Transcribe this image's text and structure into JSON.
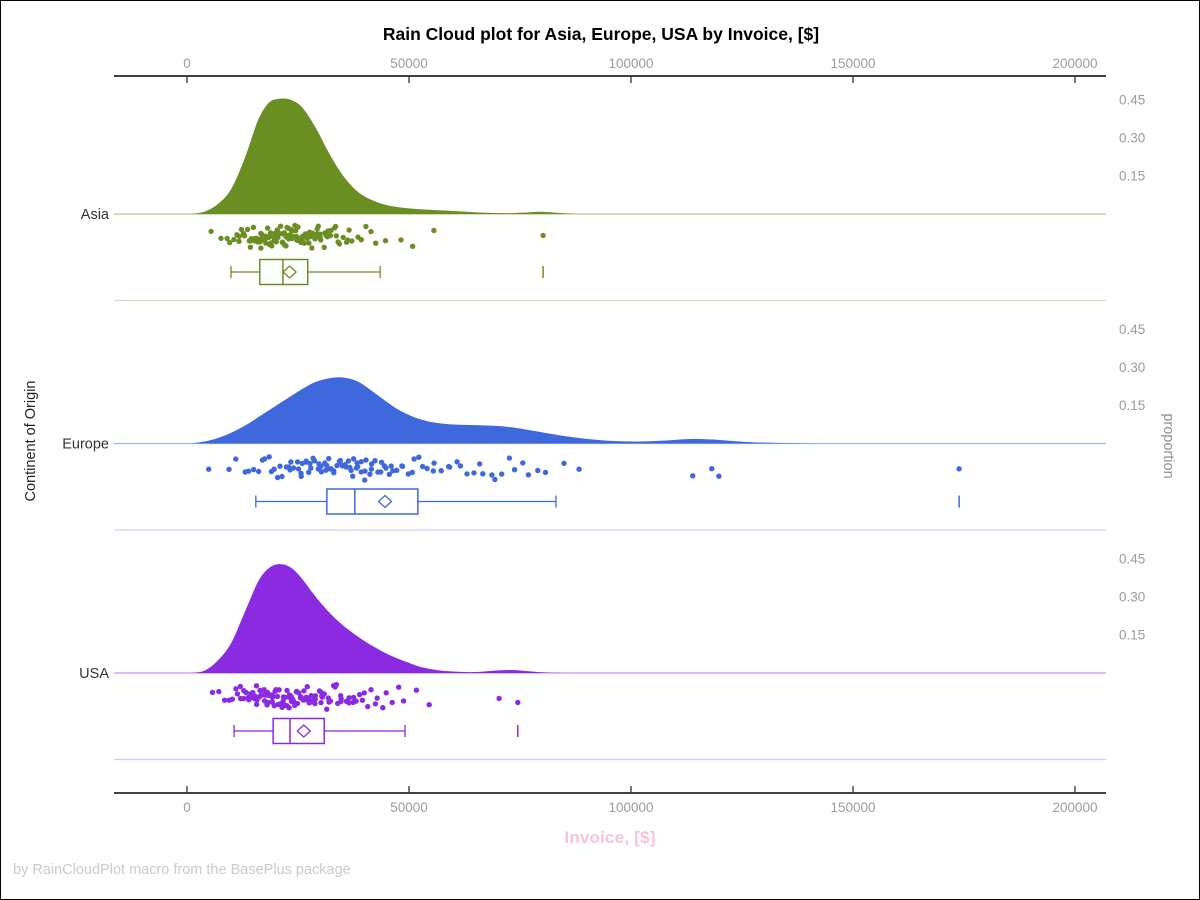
{
  "chart": {
    "title": "Rain Cloud plot for Asia, Europe, USA by Invoice, [$]",
    "xlabel": "Invoice, [$]",
    "ylabel_left": "Continent of Origin",
    "ylabel_right": "proportion",
    "footnote": "by RainCloudPlot macro from the BasePlus package",
    "x_tick_labels": [
      "0",
      "50000",
      "100000",
      "150000",
      "200000"
    ],
    "proportion_tick_labels": [
      "0.15",
      "0.30",
      "0.45"
    ]
  },
  "colors": {
    "axis_line": "#000000",
    "tick_mark": "#333333",
    "tick_label": "#9B9B9B",
    "category_label": "#333333",
    "title": "#000000",
    "xlabel_pink": "#F9C4D2",
    "footnote_gray": "#CACACA"
  },
  "chart_data": {
    "type": "raincloud",
    "title": "Rain Cloud plot for Asia, Europe, USA by Invoice, [$]",
    "xlabel": "Invoice, [$]",
    "ylabel": "Continent of Origin",
    "y2label": "proportion",
    "x_axis": {
      "ticks": [
        0,
        50000,
        100000,
        150000,
        200000
      ],
      "range": [
        -16000,
        207000
      ]
    },
    "proportion_axis": {
      "ticks": [
        0.15,
        0.3,
        0.45
      ],
      "max": 0.5
    },
    "series": [
      {
        "name": "Asia",
        "color": "#6B8E23",
        "density": {
          "x": [
            1000,
            4000,
            7000,
            10000,
            13000,
            16000,
            18500,
            21000,
            23500,
            26000,
            29000,
            32000,
            35000,
            38000,
            41000,
            45000,
            50000,
            55000,
            60000,
            66000,
            72000,
            76000,
            80000,
            84000,
            88000
          ],
          "p": [
            0,
            0.01,
            0.04,
            0.1,
            0.22,
            0.37,
            0.44,
            0.455,
            0.45,
            0.42,
            0.34,
            0.24,
            0.155,
            0.095,
            0.06,
            0.035,
            0.022,
            0.016,
            0.012,
            0.006,
            0.003,
            0.006,
            0.009,
            0.004,
            0
          ]
        },
        "box": {
          "whisker_low": 9900,
          "q1": 16400,
          "median": 21600,
          "mean": 23100,
          "q3": 27200,
          "whisker_high": 43500,
          "outliers": [
            80200
          ]
        },
        "points": {
          "count": 120,
          "seed": 11,
          "sample_below": 46000,
          "extra": [
            48200,
            50800,
            55600,
            80200
          ]
        }
      },
      {
        "name": "Europe",
        "color": "#3F68DC",
        "density": {
          "x": [
            1000,
            5000,
            9000,
            13000,
            17000,
            21000,
            25000,
            29000,
            33000,
            36000,
            39000,
            43000,
            47000,
            51000,
            55000,
            60000,
            66000,
            72000,
            78000,
            84000,
            90000,
            96000,
            102000,
            108000,
            114000,
            120000,
            126000,
            134000,
            142000
          ],
          "p": [
            0,
            0.012,
            0.035,
            0.07,
            0.115,
            0.16,
            0.205,
            0.243,
            0.26,
            0.258,
            0.24,
            0.19,
            0.14,
            0.105,
            0.085,
            0.075,
            0.072,
            0.066,
            0.05,
            0.032,
            0.018,
            0.01,
            0.008,
            0.012,
            0.018,
            0.014,
            0.006,
            0.002,
            0
          ]
        },
        "box": {
          "whisker_low": 15500,
          "q1": 31500,
          "median": 37800,
          "mean": 44600,
          "q3": 52000,
          "whisker_high": 83100,
          "outliers": [
            173900
          ]
        },
        "points": {
          "count": 105,
          "seed": 23,
          "sample_below": 82000,
          "extra": [
            84900,
            88300,
            113900,
            118200,
            119800,
            173900
          ]
        }
      },
      {
        "name": "USA",
        "color": "#8A2BE2",
        "density": {
          "x": [
            1000,
            4000,
            7000,
            10000,
            13000,
            16000,
            18500,
            21000,
            23500,
            26000,
            29000,
            32000,
            35000,
            38000,
            41000,
            44000,
            47000,
            50000,
            53000,
            57000,
            61000,
            65000,
            69000,
            73000,
            77000,
            81000,
            85000
          ],
          "p": [
            0,
            0.01,
            0.05,
            0.12,
            0.24,
            0.36,
            0.415,
            0.43,
            0.415,
            0.37,
            0.3,
            0.24,
            0.19,
            0.15,
            0.115,
            0.085,
            0.06,
            0.04,
            0.022,
            0.01,
            0.005,
            0.004,
            0.009,
            0.012,
            0.007,
            0.002,
            0
          ]
        },
        "box": {
          "whisker_low": 10600,
          "q1": 19400,
          "median": 23200,
          "mean": 26300,
          "q3": 30900,
          "whisker_high": 49100,
          "outliers": [
            74500
          ]
        },
        "points": {
          "count": 120,
          "seed": 37,
          "sample_below": 60000,
          "extra": [
            70300,
            74500
          ]
        }
      }
    ]
  }
}
